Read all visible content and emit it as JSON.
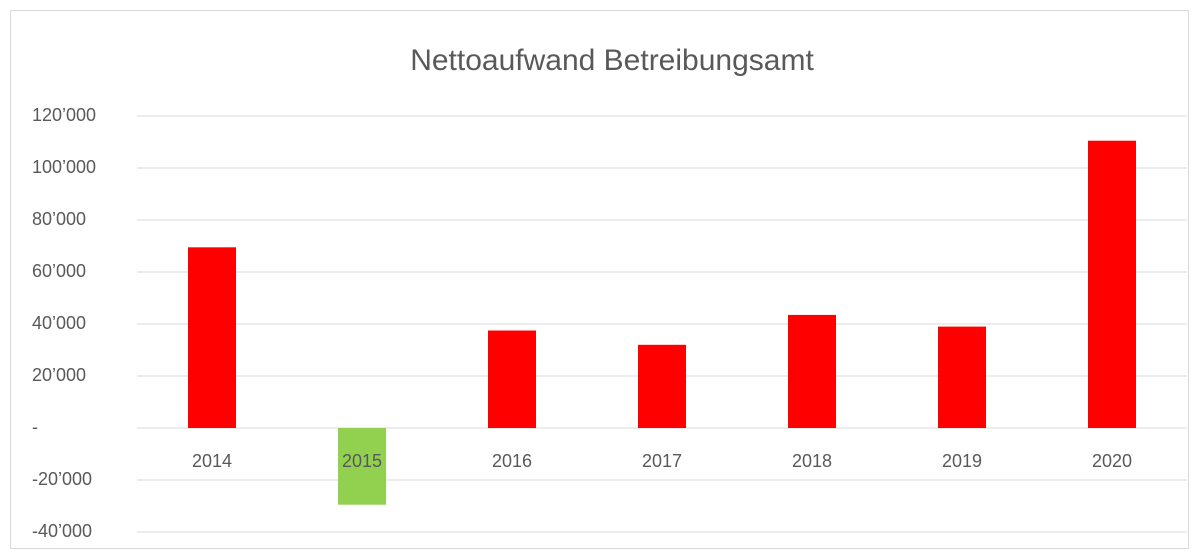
{
  "chart_data": {
    "type": "bar",
    "title": "Nettoaufwand Betreibungsamt",
    "categories": [
      "2014",
      "2015",
      "2016",
      "2017",
      "2018",
      "2019",
      "2020"
    ],
    "values": [
      69500,
      -29500,
      37500,
      32000,
      43500,
      39000,
      110500
    ],
    "colors": [
      "#ff0000",
      "#92d050",
      "#ff0000",
      "#ff0000",
      "#ff0000",
      "#ff0000",
      "#ff0000"
    ],
    "ylim": [
      -40000,
      120000
    ],
    "yticks": [
      {
        "value": -40000,
        "label": "-40’000"
      },
      {
        "value": -20000,
        "label": "-20’000"
      },
      {
        "value": 0,
        "label": "-"
      },
      {
        "value": 20000,
        "label": "20’000"
      },
      {
        "value": 40000,
        "label": "40’000"
      },
      {
        "value": 60000,
        "label": "60’000"
      },
      {
        "value": 80000,
        "label": "80’000"
      },
      {
        "value": 100000,
        "label": "100’000"
      },
      {
        "value": 120000,
        "label": "120’000"
      }
    ],
    "grid": true
  }
}
